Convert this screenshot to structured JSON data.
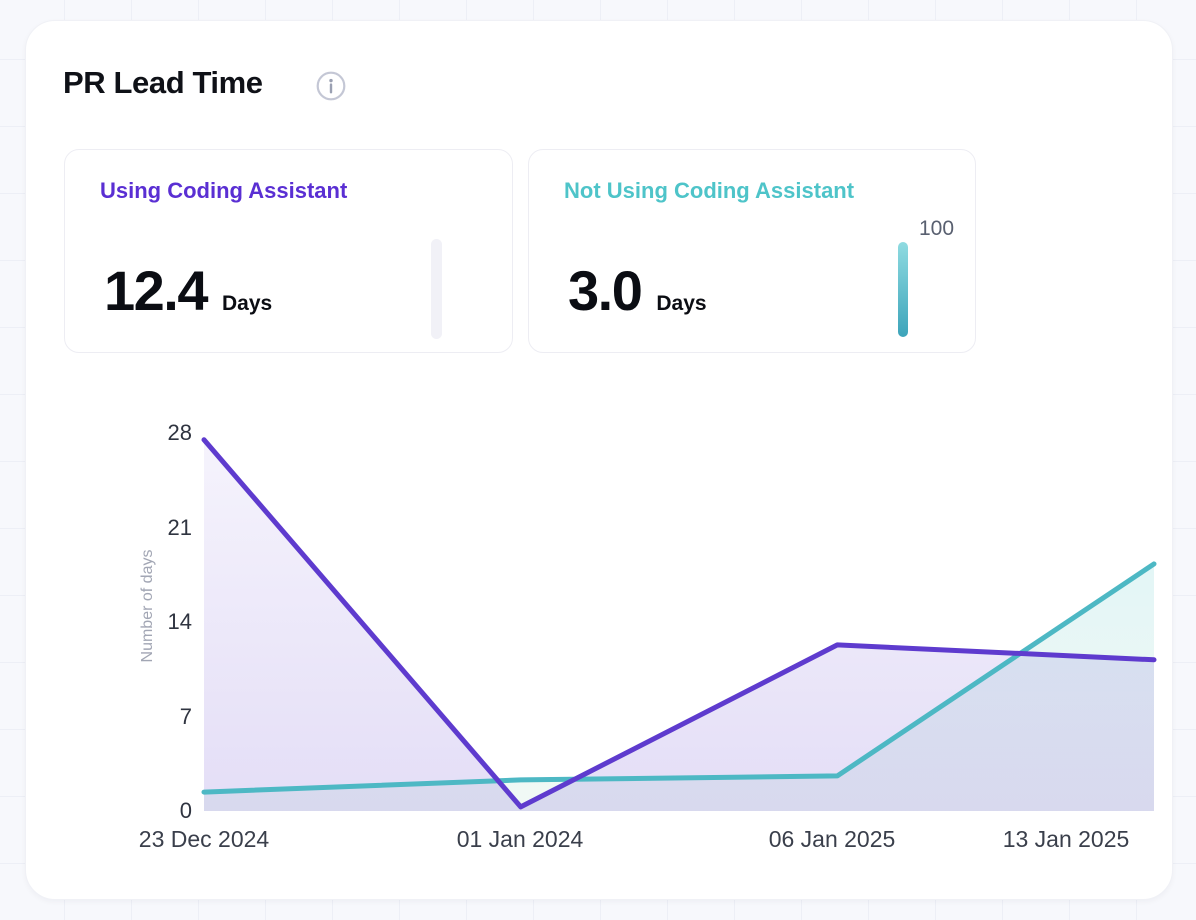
{
  "header": {
    "title": "PR Lead Time"
  },
  "summary_cards": [
    {
      "label": "Using Coding Assistant",
      "value": "12.4",
      "unit": "Days",
      "accent": "#5a2fd3",
      "bar_track": "#f1f1f7",
      "bar_gradient": null,
      "bar_value_label": ""
    },
    {
      "label": "Not Using Coding Assistant",
      "value": "3.0",
      "unit": "Days",
      "accent": "#4ec4c9",
      "bar_track": null,
      "bar_gradient": [
        "#8fdbe1",
        "#3da4ba"
      ],
      "bar_value_label": "100"
    }
  ],
  "chart_data": {
    "type": "area",
    "title": "PR Lead Time",
    "x_labels": [
      "23 Dec 2024",
      "01 Jan 2024",
      "06 Jan 2025",
      "13 Jan 2025"
    ],
    "xlabel": "",
    "ylabel": "Number of days",
    "y_ticks": [
      0,
      7,
      14,
      21,
      28
    ],
    "ylim": [
      0,
      28
    ],
    "grid": false,
    "legend_position": "none",
    "series": [
      {
        "name": "Using Coding Assistant",
        "color": "#5e3bce",
        "fill_gradient": [
          {
            "color": "#5e3bce",
            "opacity": 0.06
          },
          {
            "color": "#5e3bce",
            "opacity": 0.17
          }
        ],
        "values": [
          27.5,
          0.3,
          12.3,
          11.2
        ]
      },
      {
        "name": "Not Using Coding Assistant",
        "color": "#4db8c4",
        "fill_gradient": [
          {
            "color": "#4ec4c9",
            "opacity": 0.16
          },
          {
            "color": "#6fc49b",
            "opacity": 0.1
          }
        ],
        "values": [
          1.4,
          2.3,
          2.6,
          18.3
        ]
      }
    ]
  }
}
